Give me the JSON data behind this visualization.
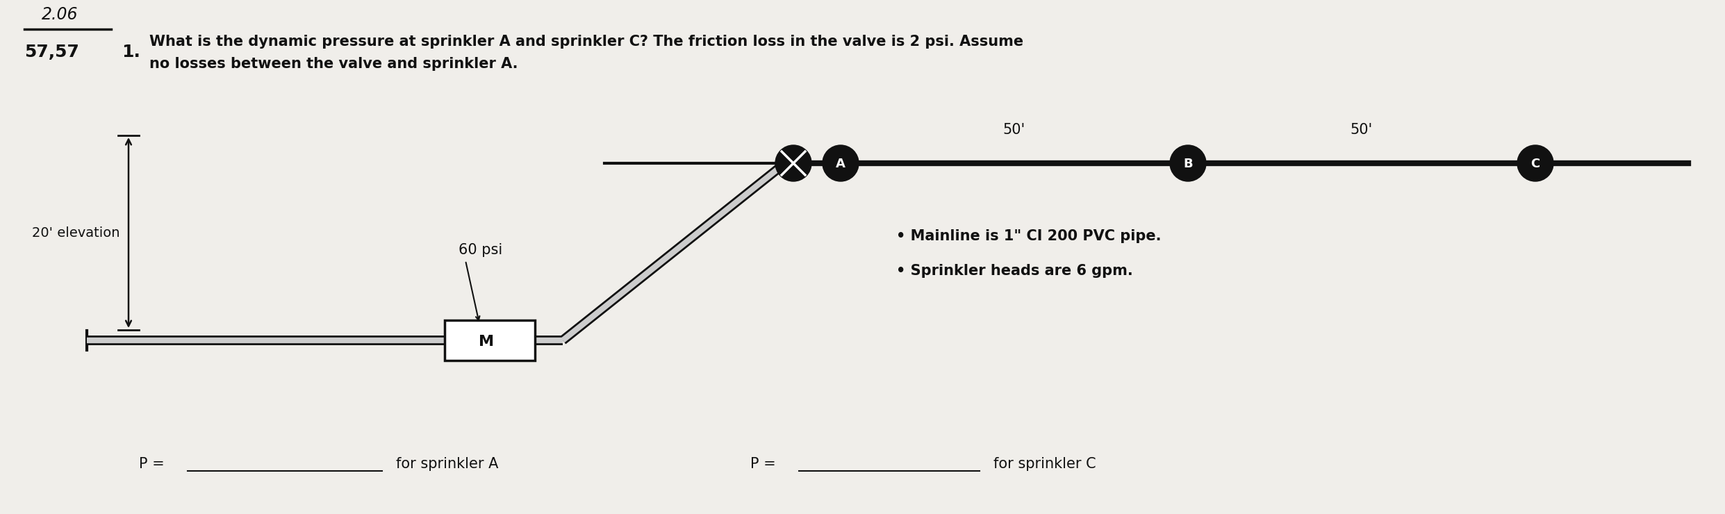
{
  "background_color": "#e8e6e0",
  "title_number": "57,57",
  "title_1": "1.",
  "question_text": "What is the dynamic pressure at sprinkler A and sprinkler C? The friction loss in the valve is 2 psi. Assume",
  "question_text2": "no losses between the valve and sprinkler A.",
  "handwritten_top": "2.06",
  "bullet1": "Mainline is 1\" CI 200 PVC pipe.",
  "bullet2": "Sprinkler heads are 6 gpm.",
  "label_20ft": "20' elevation",
  "label_60psi": "60 psi",
  "label_M": "M",
  "label_A": "A",
  "label_B": "B",
  "label_C": "C",
  "label_50_1": "50'",
  "label_50_2": "50'",
  "p_eq_left": "P =",
  "for_sprinkler_A": "for sprinkler A",
  "p_eq_right": "P =",
  "for_sprinkler_C": "for sprinkler C",
  "pipe_color": "#111111",
  "pipe_fill": "#cccccc",
  "node_color": "#111111",
  "text_color": "#111111",
  "bg_light": "#f0eeea"
}
